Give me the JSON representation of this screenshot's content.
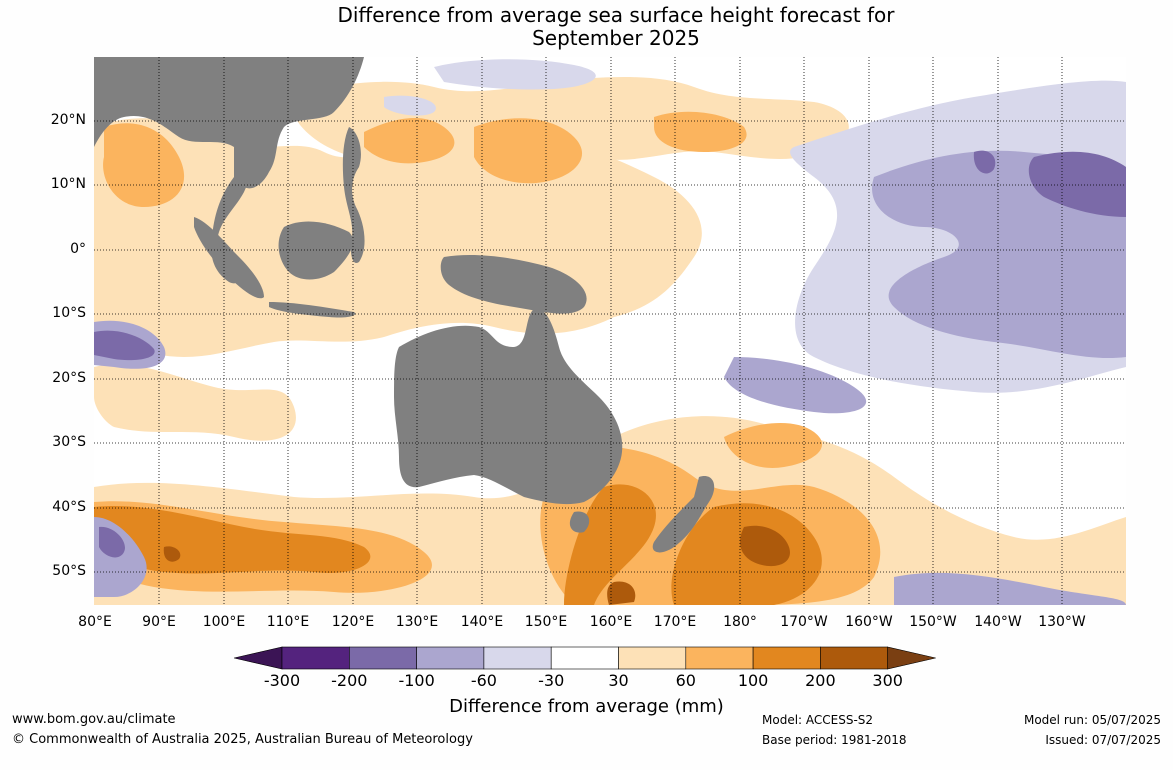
{
  "title_lines": [
    "Difference from average sea surface height forecast for",
    "September 2025"
  ],
  "lat_labels": [
    "20°N",
    "10°N",
    "0°",
    "10°S",
    "20°S",
    "30°S",
    "40°S",
    "50°S"
  ],
  "lon_labels": [
    "80°E",
    "90°E",
    "100°E",
    "110°E",
    "120°E",
    "130°E",
    "140°E",
    "150°E",
    "160°E",
    "170°E",
    "180°",
    "170°W",
    "160°W",
    "150°W",
    "140°W",
    "130°W"
  ],
  "legend": {
    "title": "Difference from average (mm)",
    "ticks": [
      "-300",
      "-200",
      "-100",
      "-60",
      "-30",
      "30",
      "60",
      "100",
      "200",
      "300"
    ],
    "colors": [
      "#3b1455",
      "#54237e",
      "#7b6aa8",
      "#aba6cf",
      "#d8d8eb",
      "#ffffff",
      "#fde1b7",
      "#fbb45e",
      "#e2871f",
      "#ad5a0c",
      "#7a3f12"
    ]
  },
  "footer": {
    "website": "www.bom.gov.au/climate",
    "copyright": "© Commonwealth of Australia 2025, Australian Bureau of Meteorology",
    "model": "Model: ACCESS-S2",
    "base_period": "Base period: 1981-2018",
    "model_run": "Model run: 05/07/2025",
    "issued": "Issued: 07/07/2025"
  },
  "colors": {
    "land": "#808080",
    "ocean": "#ffffff"
  }
}
